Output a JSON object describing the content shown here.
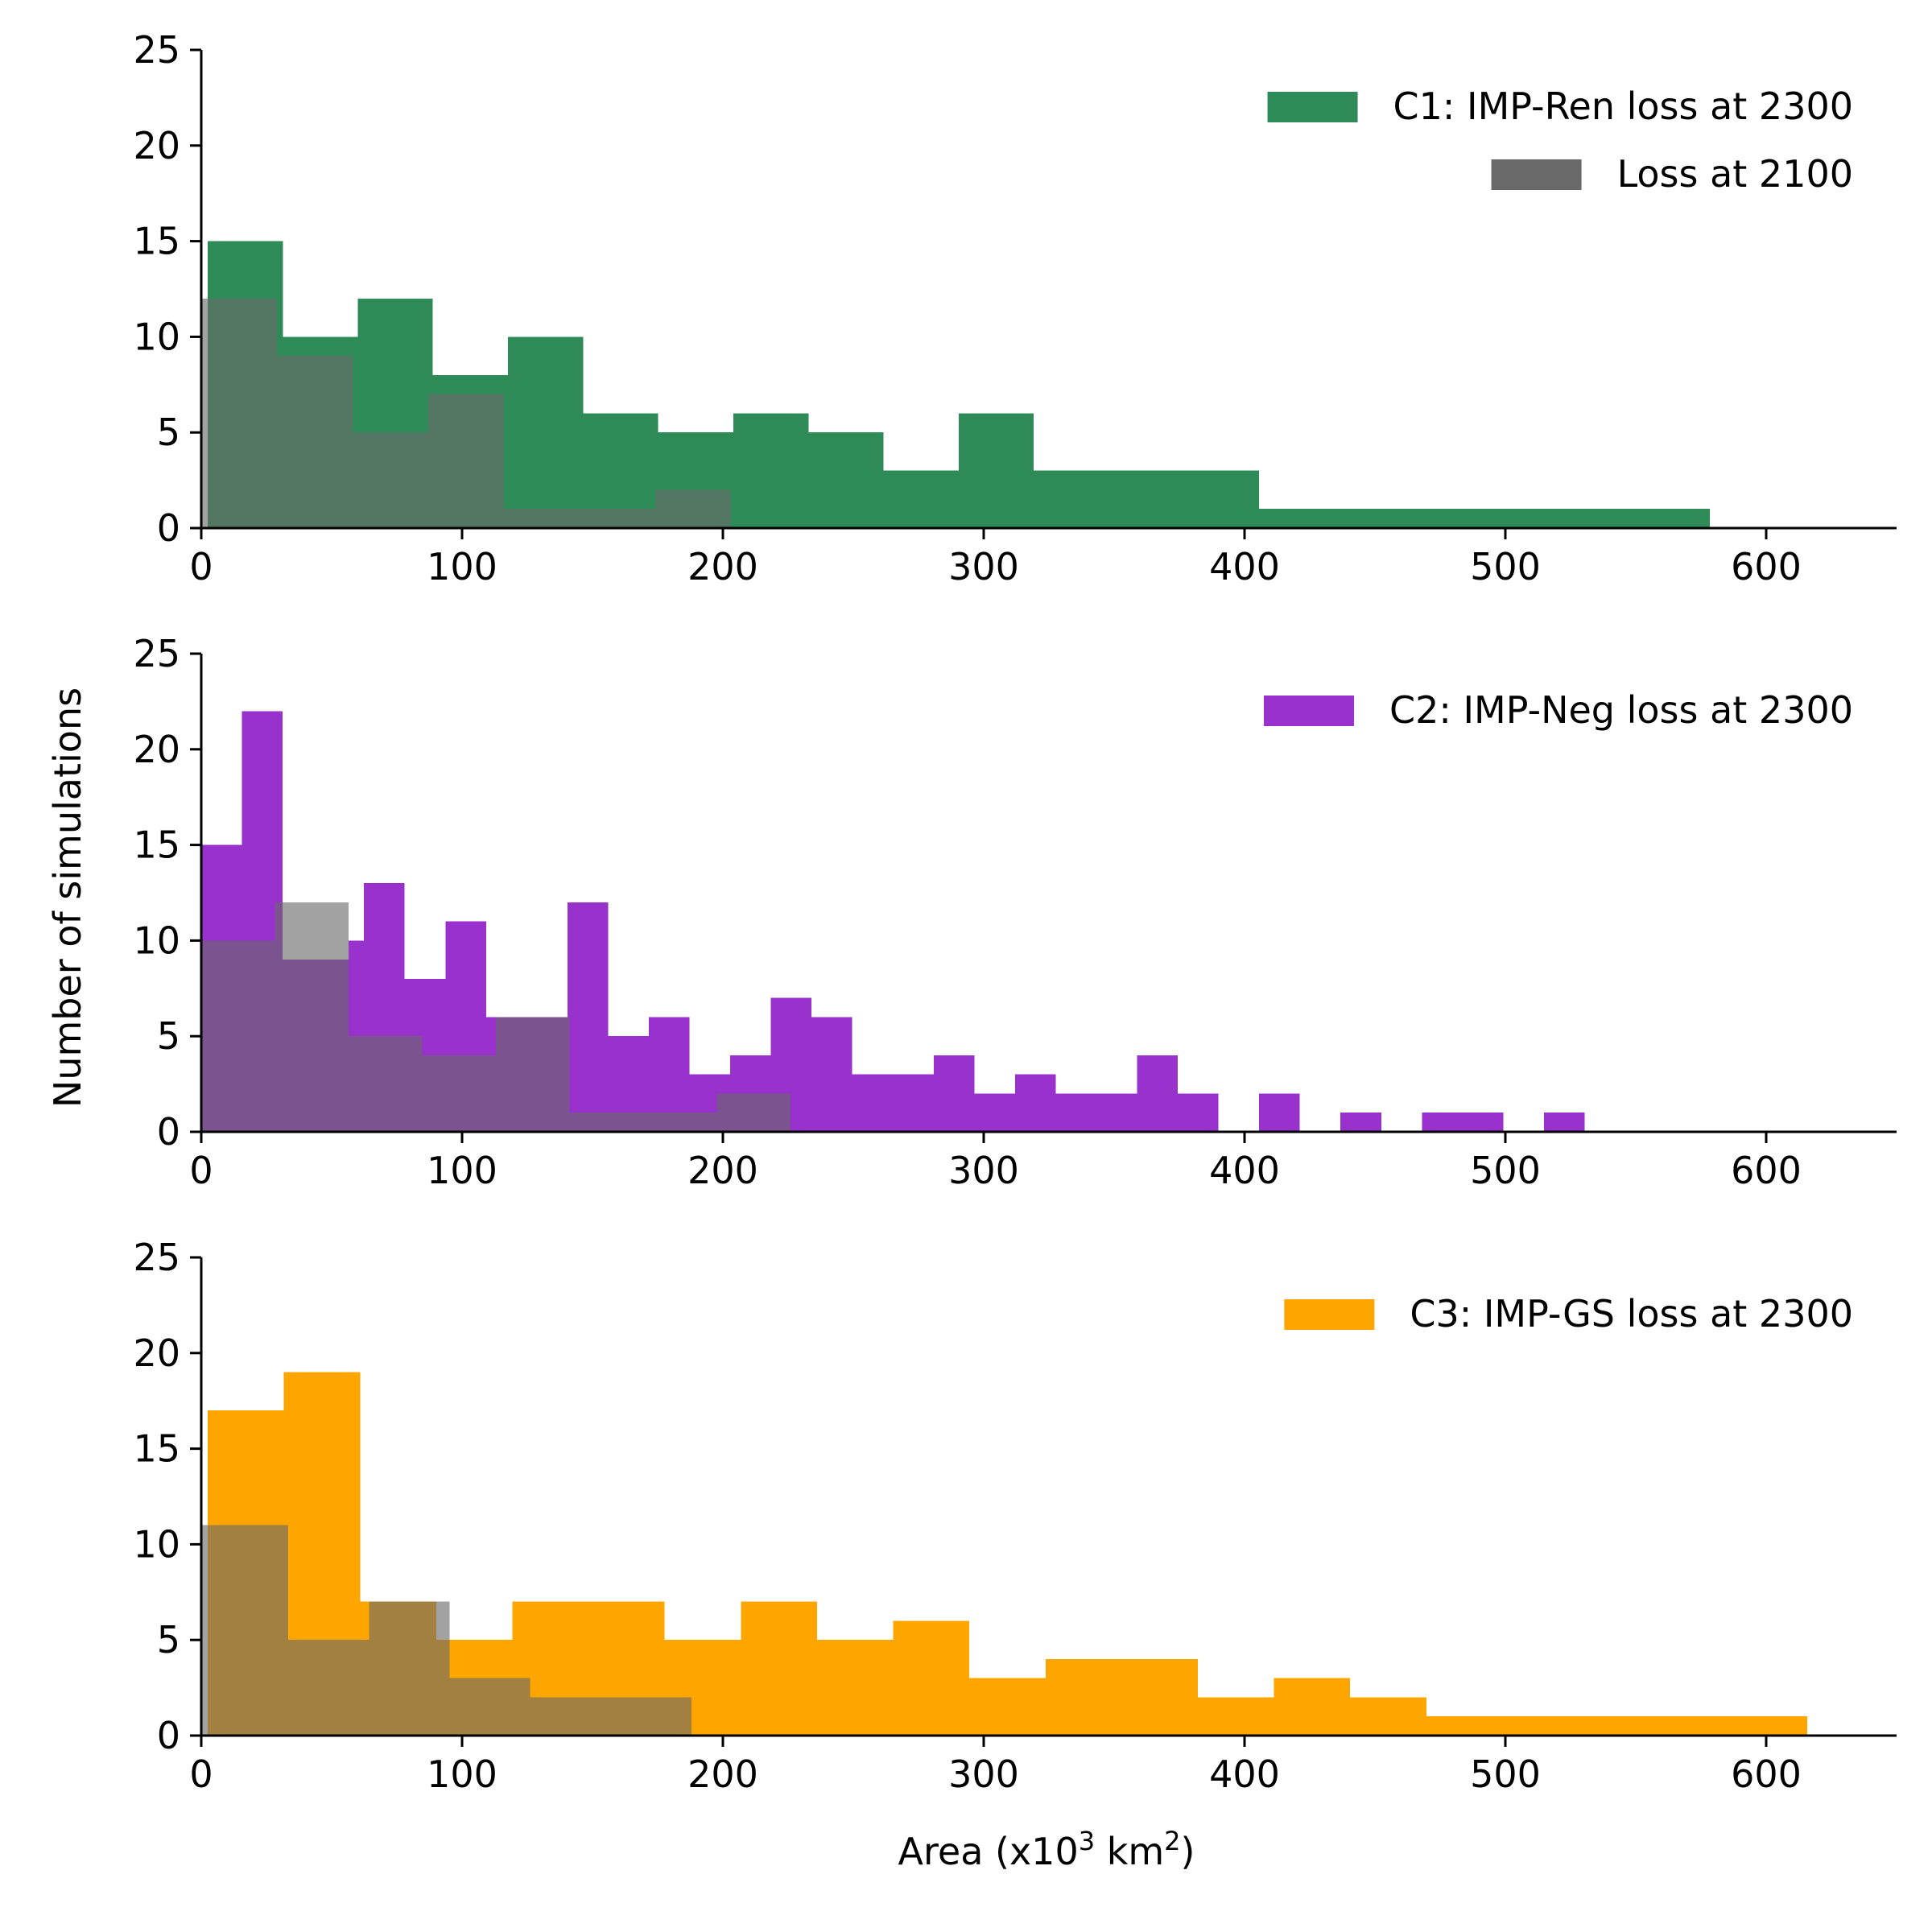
{
  "figure": {
    "ylabel": "Number of simulations",
    "xlabel": "Area (x10",
    "xlabel_sup1": "3",
    "xlabel_mid": " km",
    "xlabel_sup2": "2",
    "xlabel_end": ")"
  },
  "chart_data": [
    {
      "type": "bar",
      "xlim": [
        0,
        650
      ],
      "ylim": [
        0,
        25
      ],
      "xticks": [
        "0",
        "100",
        "200",
        "300",
        "400",
        "500",
        "600"
      ],
      "yticks": [
        "0",
        "5",
        "10",
        "15",
        "20",
        "25"
      ],
      "legend_position": "top-right",
      "series": [
        {
          "name": "C1: IMP-Ren loss at 2300",
          "color": "#2e8b57",
          "bins": [
            [
              2.5,
              31.3,
              15
            ],
            [
              31.3,
              60,
              10
            ],
            [
              60,
              88.8,
              12
            ],
            [
              88.8,
              117.6,
              8
            ],
            [
              117.6,
              146.4,
              10
            ],
            [
              146.4,
              175.2,
              6
            ],
            [
              175.2,
              204,
              5
            ],
            [
              204,
              232.8,
              6
            ],
            [
              232.8,
              261.6,
              5
            ],
            [
              261.6,
              290.4,
              3
            ],
            [
              290.4,
              319.2,
              6
            ],
            [
              319.2,
              348,
              3
            ],
            [
              348,
              376.8,
              3
            ],
            [
              376.8,
              405.6,
              3
            ],
            [
              405.6,
              434.4,
              1
            ],
            [
              434.4,
              463.2,
              1
            ],
            [
              463.2,
              492,
              1
            ],
            [
              492,
              520.8,
              1
            ],
            [
              520.8,
              549.6,
              1
            ],
            [
              549.6,
              578.4,
              1
            ]
          ]
        },
        {
          "name": "Loss at 2100",
          "color": "#696969",
          "bins": [
            [
              0,
              2.5,
              12
            ],
            [
              2.5,
              29,
              12
            ],
            [
              29,
              58,
              9
            ],
            [
              58,
              87,
              5
            ],
            [
              87,
              116,
              7
            ],
            [
              116,
              145,
              1
            ],
            [
              145,
              174,
              1
            ],
            [
              174,
              203,
              2
            ]
          ]
        }
      ]
    },
    {
      "type": "bar",
      "xlim": [
        0,
        650
      ],
      "ylim": [
        0,
        25
      ],
      "xticks": [
        "0",
        "100",
        "200",
        "300",
        "400",
        "500",
        "600"
      ],
      "yticks": [
        "0",
        "5",
        "10",
        "15",
        "20",
        "25"
      ],
      "legend_position": "top-right",
      "series": [
        {
          "name": "C2: IMP-Neg loss at 2300",
          "color": "#9932cc",
          "bins": [
            [
              0,
              15.6,
              15
            ],
            [
              15.6,
              31.2,
              22
            ],
            [
              31.2,
              46.8,
              9
            ],
            [
              46.8,
              56.5,
              9
            ],
            [
              56.5,
              62.4,
              10
            ],
            [
              62.4,
              78,
              13
            ],
            [
              78,
              93.6,
              8
            ],
            [
              93.6,
              109.2,
              11
            ],
            [
              109.2,
              124.8,
              6
            ],
            [
              124.8,
              140.4,
              6
            ],
            [
              140.4,
              156,
              12
            ],
            [
              156,
              171.6,
              5
            ],
            [
              171.6,
              187.2,
              6
            ],
            [
              187.2,
              202.8,
              3
            ],
            [
              202.8,
              218.4,
              4
            ],
            [
              218.4,
              234,
              7
            ],
            [
              234,
              249.6,
              6
            ],
            [
              249.6,
              265.2,
              3
            ],
            [
              265.2,
              280.8,
              3
            ],
            [
              280.8,
              296.4,
              4
            ],
            [
              296.4,
              312,
              2
            ],
            [
              312,
              327.6,
              3
            ],
            [
              327.6,
              343.2,
              2
            ],
            [
              343.2,
              358.8,
              2
            ],
            [
              358.8,
              374.4,
              4
            ],
            [
              374.4,
              390,
              2
            ],
            [
              405.6,
              421.2,
              2
            ],
            [
              436.8,
              452.4,
              1
            ],
            [
              468,
              483.6,
              1
            ],
            [
              483.6,
              499.2,
              1
            ],
            [
              514.8,
              530.4,
              1
            ]
          ]
        },
        {
          "name": "",
          "color": "#696969",
          "bins": [
            [
              0,
              28.2,
              10
            ],
            [
              28.2,
              56.5,
              12
            ],
            [
              56.5,
              84.7,
              5
            ],
            [
              84.7,
              113,
              4
            ],
            [
              113,
              141.2,
              6
            ],
            [
              141.2,
              169.4,
              1
            ],
            [
              169.4,
              197.7,
              1
            ],
            [
              197.7,
              225.9,
              2
            ]
          ]
        }
      ]
    },
    {
      "type": "bar",
      "xlim": [
        0,
        650
      ],
      "ylim": [
        0,
        25
      ],
      "xticks": [
        "0",
        "100",
        "200",
        "300",
        "400",
        "500",
        "600"
      ],
      "yticks": [
        "0",
        "5",
        "10",
        "15",
        "20",
        "25"
      ],
      "legend_position": "top-right",
      "series": [
        {
          "name": "C3: IMP-GS loss at 2300",
          "color": "#ffa500",
          "bins": [
            [
              2.5,
              31.7,
              17
            ],
            [
              31.7,
              60.9,
              19
            ],
            [
              60.9,
              90.1,
              7
            ],
            [
              90.1,
              119.3,
              5
            ],
            [
              119.3,
              148.5,
              7
            ],
            [
              148.5,
              177.7,
              7
            ],
            [
              177.7,
              206.9,
              5
            ],
            [
              206.9,
              236.1,
              7
            ],
            [
              236.1,
              265.3,
              5
            ],
            [
              265.3,
              294.5,
              6
            ],
            [
              294.5,
              323.7,
              3
            ],
            [
              323.7,
              352.9,
              4
            ],
            [
              352.9,
              382.1,
              4
            ],
            [
              382.1,
              411.3,
              2
            ],
            [
              411.3,
              440.5,
              3
            ],
            [
              440.5,
              469.7,
              2
            ],
            [
              469.7,
              498.9,
              1
            ],
            [
              498.9,
              528.1,
              1
            ],
            [
              528.1,
              557.3,
              1
            ],
            [
              557.3,
              586.5,
              1
            ],
            [
              586.5,
              615.7,
              1
            ]
          ]
        },
        {
          "name": "",
          "color": "#696969",
          "bins": [
            [
              0,
              2.5,
              11
            ],
            [
              2.5,
              33.4,
              11
            ],
            [
              33.4,
              64.3,
              5
            ],
            [
              64.3,
              95.2,
              7
            ],
            [
              95.2,
              126.1,
              3
            ],
            [
              126.1,
              157,
              2
            ],
            [
              157,
              187.9,
              2
            ]
          ]
        }
      ]
    }
  ]
}
